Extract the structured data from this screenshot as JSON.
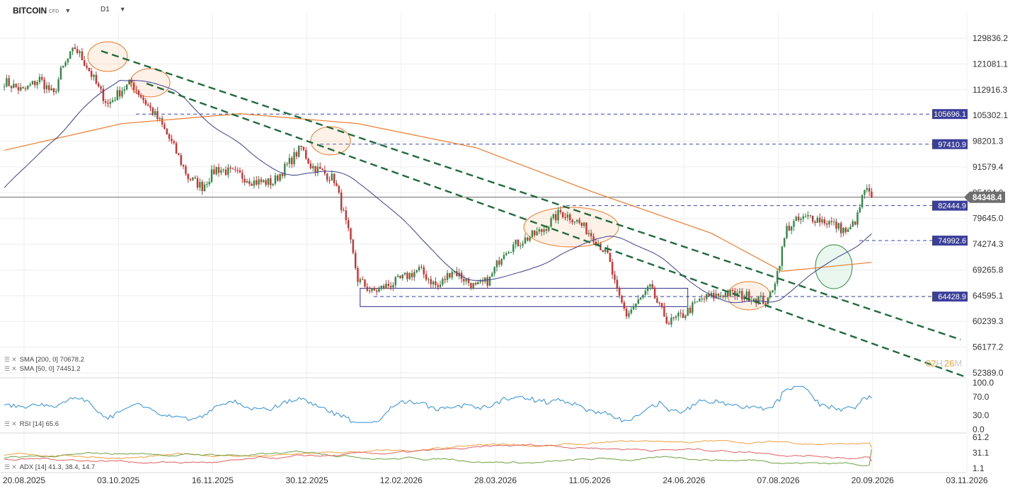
{
  "header": {
    "symbol": "BITCOIN",
    "suffix": "CFD",
    "timeframe": "D1"
  },
  "indicators": {
    "sma200": "SMA [200, 0] 70678.2",
    "sma50": "SMA [50, 0] 74451.2",
    "rsi": "RSI [14] 65.6",
    "adx": "ADX [14] 41.3, 38.4, 14.7"
  },
  "colors": {
    "up": "#2e8b45",
    "down": "#d1312e",
    "sma200": "#f07a2a",
    "sma50": "#3a3f8f",
    "trend": "#1f6b3b",
    "level": "#3a48b8",
    "label_bg": "#3b3f9a",
    "rsi": "#2b8fe0",
    "adx": "#f0a040",
    "di_plus": "#6fa040",
    "di_minus": "#e06060"
  },
  "chart_data": {
    "type": "candlestick",
    "instrument": "BITCOIN",
    "timeframe": "D1",
    "x_tick_labels": [
      "20.08.2025",
      "03.10.2025",
      "16.11.2025",
      "30.12.2025",
      "12.02.2026",
      "28.03.2026",
      "11.05.2026",
      "24.06.2026",
      "07.08.2026",
      "20.09.2026",
      "03.11.2026"
    ],
    "price_axis": [
      "129836.2",
      "121081.1",
      "112916.3",
      "105302.1",
      "98201.3",
      "91579.4",
      "85404.0",
      "79645.0",
      "74274.3",
      "69265.8",
      "64595.1",
      "60239.3",
      "56177.2",
      "52389.0"
    ],
    "price_range": [
      52389,
      129836
    ],
    "current_price": "84348.4",
    "level_labels": [
      "105696.1",
      "97410.9",
      "82444.9",
      "74992.6",
      "64428.9"
    ],
    "levels": [
      105696.1,
      97410.9,
      82444.9,
      74992.6,
      64428.9
    ],
    "rsi_axis": [
      "100.0",
      "70.0",
      "30.0",
      "0.0"
    ],
    "adx_axis": [
      "61.2",
      "31.1",
      "1.1"
    ],
    "countdown_hours": "02",
    "countdown_h": "H",
    "countdown_minutes": "26",
    "countdown_m": "M",
    "price_path": [
      {
        "d": 0,
        "p": 115500
      },
      {
        "d": 8,
        "p": 112500
      },
      {
        "d": 15,
        "p": 116200
      },
      {
        "d": 21,
        "p": 111200
      },
      {
        "d": 24,
        "p": 118500
      },
      {
        "d": 30,
        "p": 126500
      },
      {
        "d": 35,
        "p": 120500
      },
      {
        "d": 40,
        "p": 113200
      },
      {
        "d": 44,
        "p": 108500
      },
      {
        "d": 50,
        "p": 113000
      },
      {
        "d": 54,
        "p": 115000
      },
      {
        "d": 60,
        "p": 109000
      },
      {
        "d": 66,
        "p": 103500
      },
      {
        "d": 72,
        "p": 96500
      },
      {
        "d": 78,
        "p": 89000
      },
      {
        "d": 84,
        "p": 86800
      },
      {
        "d": 90,
        "p": 91200
      },
      {
        "d": 100,
        "p": 89500
      },
      {
        "d": 106,
        "p": 88000
      },
      {
        "d": 114,
        "p": 87800
      },
      {
        "d": 120,
        "p": 92000
      },
      {
        "d": 126,
        "p": 96500
      },
      {
        "d": 130,
        "p": 92000
      },
      {
        "d": 140,
        "p": 88500
      },
      {
        "d": 146,
        "p": 76500
      },
      {
        "d": 150,
        "p": 67500
      },
      {
        "d": 156,
        "p": 65200
      },
      {
        "d": 166,
        "p": 67000
      },
      {
        "d": 176,
        "p": 69300
      },
      {
        "d": 184,
        "p": 66000
      },
      {
        "d": 190,
        "p": 69300
      },
      {
        "d": 200,
        "p": 66000
      },
      {
        "d": 206,
        "p": 67500
      },
      {
        "d": 212,
        "p": 73000
      },
      {
        "d": 220,
        "p": 75000
      },
      {
        "d": 228,
        "p": 77000
      },
      {
        "d": 236,
        "p": 81000
      },
      {
        "d": 242,
        "p": 79500
      },
      {
        "d": 250,
        "p": 75800
      },
      {
        "d": 256,
        "p": 72000
      },
      {
        "d": 260,
        "p": 65000
      },
      {
        "d": 264,
        "p": 61300
      },
      {
        "d": 270,
        "p": 64000
      },
      {
        "d": 274,
        "p": 66000
      },
      {
        "d": 278,
        "p": 62500
      },
      {
        "d": 282,
        "p": 60000
      },
      {
        "d": 288,
        "p": 61300
      },
      {
        "d": 296,
        "p": 64000
      },
      {
        "d": 306,
        "p": 65000
      },
      {
        "d": 316,
        "p": 64500
      },
      {
        "d": 324,
        "p": 63500
      },
      {
        "d": 328,
        "p": 68800
      },
      {
        "d": 332,
        "p": 77500
      },
      {
        "d": 336,
        "p": 79000
      },
      {
        "d": 342,
        "p": 80000
      },
      {
        "d": 350,
        "p": 78800
      },
      {
        "d": 358,
        "p": 76700
      },
      {
        "d": 362,
        "p": 80000
      },
      {
        "d": 365,
        "p": 86200
      },
      {
        "d": 368,
        "p": 84348
      }
    ]
  }
}
